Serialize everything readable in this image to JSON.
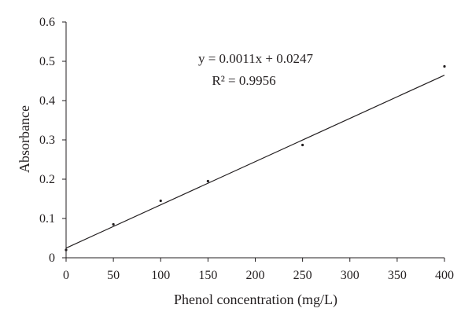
{
  "chart_data": {
    "type": "scatter",
    "title": "",
    "xlabel": "Phenol concentration (mg/L)",
    "ylabel": "Absorbance",
    "xlim": [
      0,
      400
    ],
    "ylim": [
      0,
      0.6
    ],
    "xticks": [
      0,
      50,
      100,
      150,
      200,
      250,
      300,
      350,
      400
    ],
    "yticks": [
      0,
      0.1,
      0.2,
      0.3,
      0.4,
      0.5,
      0.6
    ],
    "xtick_labels": [
      "0",
      "50",
      "100",
      "150",
      "200",
      "250",
      "300",
      "350",
      "400"
    ],
    "ytick_labels": [
      "0",
      "0.1",
      "0.2",
      "0.3",
      "0.4",
      "0.5",
      "0.6"
    ],
    "grid": false,
    "legend": "none",
    "series": [
      {
        "x": [
          0,
          50,
          100,
          150,
          250,
          400
        ],
        "y": [
          0.02,
          0.085,
          0.145,
          0.195,
          0.287,
          0.487
        ]
      }
    ],
    "trendline": {
      "slope": 0.0011,
      "intercept": 0.0247
    },
    "annotation": {
      "equation": "y = 0.0011x + 0.0247",
      "r2": "R² = 0.9956"
    }
  }
}
